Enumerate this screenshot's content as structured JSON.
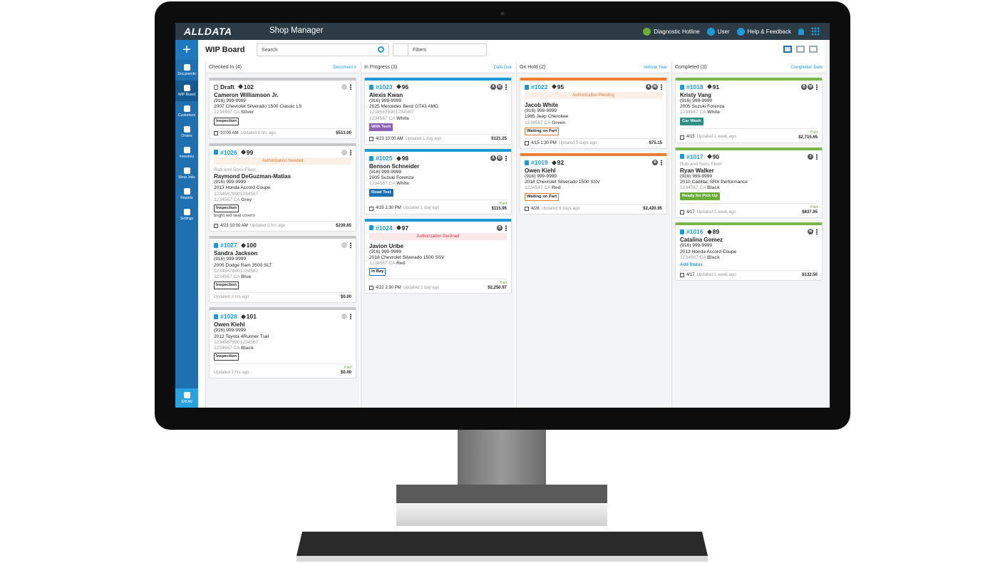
{
  "header": {
    "logo": "ALLDATA",
    "app": "Shop Manager",
    "links": [
      "Diagnostic Hotline",
      "User",
      "Help & Feedback"
    ]
  },
  "sidebar": {
    "items": [
      "Documents",
      "WIP Board",
      "Customers",
      "Orders",
      "Inventory",
      "Shop Jobs",
      "Reports",
      "Settings"
    ],
    "active": 1,
    "show": "SHOW"
  },
  "toolbar": {
    "title": "WIP Board",
    "search": "Search",
    "filters": "Filters"
  },
  "columns": [
    {
      "title": "Checked In (4)",
      "sort": "Document #",
      "color": "#c8c8c8",
      "cards": [
        {
          "id": "Draft",
          "tag": "102",
          "avatars": [],
          "customer": "Cameron Williamson Jr.",
          "phone": "(916) 999-9999",
          "vehicle": "2007 Chevrolet Silverado 1500 Classic LS",
          "plate": "1234567",
          "state": "CA",
          "color": "Silver",
          "status": {
            "text": "Inspection",
            "color": "#333333",
            "filled": false
          },
          "date": "10:00 AM",
          "updated": "Updated 6 hrs ago",
          "total": "$513.00"
        },
        {
          "id": "#1026",
          "tag": "99",
          "avatars": [],
          "banner": {
            "text": "Authorization Needed",
            "color": "#e07a2e"
          },
          "fleet": "Rob and Sons Fleet",
          "customer": "Raymond DeGuzman-Matias",
          "phone": "(916) 999-9999",
          "vehicle": "2013 Honda Accord Coupe",
          "vin": "12345678901234567",
          "plate": "1234567",
          "state": "CA",
          "color": "Grey",
          "status": {
            "text": "Inspection",
            "color": "#333333",
            "filled": false
          },
          "note": "bright red seat covers",
          "date": "4/23 10:00 AM",
          "updated": "Updated 2 hrs ago",
          "total": "$239.85"
        },
        {
          "id": "#1027",
          "tag": "100",
          "avatars": [],
          "customer": "Sandra Jackson",
          "phone": "(916) 999-9999",
          "vehicle": "2005 Dodge Ram 3500 SLT",
          "vin": "12345678901234567",
          "plate": "1234567",
          "state": "CA",
          "color": "Blue",
          "status": {
            "text": "Inspection",
            "color": "#333333",
            "filled": false
          },
          "updated": "Updated 3 hrs ago",
          "total": "$0.00"
        },
        {
          "id": "#1028",
          "tag": "101",
          "avatars": [],
          "customer": "Owen Kiehl",
          "phone": "(916) 999-9999",
          "vehicle": "2012 Toyota 4Runner Trail",
          "vin": "12345678901234567",
          "plate": "1234567",
          "state": "CA",
          "color": "Black",
          "status": {
            "text": "Inspection",
            "color": "#333333",
            "filled": false
          },
          "updated": "Updated 3 hrs ago",
          "paid": "Paid",
          "total": "$0.00"
        }
      ]
    },
    {
      "title": "In Progress (3)",
      "sort": "Date Due",
      "color": "#1c9ad6",
      "cards": [
        {
          "id": "#1023",
          "tag": "96",
          "avatars": [
            "A",
            "M"
          ],
          "customer": "Alexis Kwan",
          "phone": "(916) 999-9999",
          "vehicle": "2025 Mercedes Benz GT43 AMG",
          "vin": "12345678901234567",
          "plate": "1234567",
          "state": "CA",
          "color": "White",
          "status": {
            "text": "With Tech",
            "color": "#8c62b5",
            "filled": true
          },
          "date": "4/23 10:00 AM",
          "updated": "Updated 1 day ago",
          "total": "$121.25"
        },
        {
          "id": "#1025",
          "tag": "98",
          "avatars": [
            "A",
            "M"
          ],
          "customer": "Benson Schneider",
          "phone": "(916) 999-9999",
          "vehicle": "2005 Suzuki Forenza",
          "plate": "1234567",
          "state": "CA",
          "color": "White",
          "status": {
            "text": "Road Test",
            "color": "#1f6fb5",
            "filled": true
          },
          "date": "4/25 2:30 PM",
          "updated": "Updated 1 day ago",
          "paid": "Paid",
          "total": "$115.95"
        },
        {
          "id": "#1024",
          "tag": "97",
          "avatars": [
            "B"
          ],
          "banner": {
            "text": "Authorization Declined",
            "color": "#d9363e"
          },
          "customer": "Javion Uribe",
          "phone": "(916) 999-9999",
          "vehicle": "2018 Chevrolet Silverado 1500 SSV",
          "plate": "1234567",
          "state": "CA",
          "color": "Red",
          "status": {
            "text": "In Bay",
            "color": "#1f6fb5",
            "filled": false
          },
          "date": "4/22 2:30 PM",
          "updated": "Updated 2 day ago",
          "paid": "Paid",
          "total": "$2,250.97"
        }
      ]
    },
    {
      "title": "On Hold (2)",
      "sort": "Vehicle Year",
      "color": "#ee7d2f",
      "cards": [
        {
          "id": "#1022",
          "tag": "95",
          "avatars": [
            "A",
            "M"
          ],
          "banner": {
            "text": "Authorization Pending",
            "color": "#e07a2e"
          },
          "customer": "Jacob White",
          "phone": "(916) 999-9999",
          "vehicle": "1985 Jeep Cherokee",
          "plate": "1234567",
          "state": "CA",
          "color": "Green",
          "status": {
            "text": "Waiting on Part",
            "color": "#e07a2e",
            "filled": false
          },
          "date": "4/15 1:30 PM",
          "updated": "Updated 5 days ago",
          "total": "$75.15"
        },
        {
          "id": "#1019",
          "tag": "92",
          "avatars": [
            "B"
          ],
          "customer": "Owen Kiehl",
          "phone": "(916) 999-9999",
          "vehicle": "2018 Chevrolet Silverado 1500 SSV",
          "plate": "1234567",
          "state": "CA",
          "color": "Red",
          "status": {
            "text": "Waiting on Part",
            "color": "#e07a2e",
            "filled": false
          },
          "date": "4/26",
          "updated": "Updated 6 days ago",
          "total": "$2,420.95"
        }
      ]
    },
    {
      "title": "Completed (3)",
      "sort": "Completion Date",
      "color": "#7ab648",
      "cards": [
        {
          "id": "#1018",
          "tag": "91",
          "avatars": [
            "B",
            "M"
          ],
          "customer": "Kristy Vang",
          "phone": "(916) 999-9999",
          "vehicle": "2005 Suzuki Forenza",
          "plate": "1234567",
          "state": "CA",
          "color": "White",
          "status": {
            "text": "Car Wash",
            "color": "#2f8f86",
            "filled": true
          },
          "date": "4/15",
          "updated": "Updated 1 week ago",
          "paid": "Paid",
          "total": "$2,715.65"
        },
        {
          "id": "#1017",
          "tag": "90",
          "avatars": [
            "J"
          ],
          "fleet": "Rob and Sons Fleet",
          "customer": "Ryan Walker",
          "phone": "(916) 999-9999",
          "vehicle": "2010 Cadillac SRX Performance",
          "plate": "1234567",
          "state": "CA",
          "color": "Black",
          "status": {
            "text": "Ready for Pick Up",
            "color": "#6aae3a",
            "filled": true
          },
          "date": "4/17",
          "updated": "Updated 1 week ago",
          "paid": "Paid",
          "total": "$837.95"
        },
        {
          "id": "#1016",
          "tag": "89",
          "avatars": [
            "M"
          ],
          "customer": "Catalina Gomez",
          "phone": "(916) 999-9999",
          "vehicle": "2013 Honda Accord Coupe",
          "plate": "1234567",
          "state": "CA",
          "color": "Black",
          "add_status": "Add Status",
          "date": "4/17",
          "updated": "Updated 1 week ago",
          "total": "$132.50"
        }
      ]
    }
  ]
}
